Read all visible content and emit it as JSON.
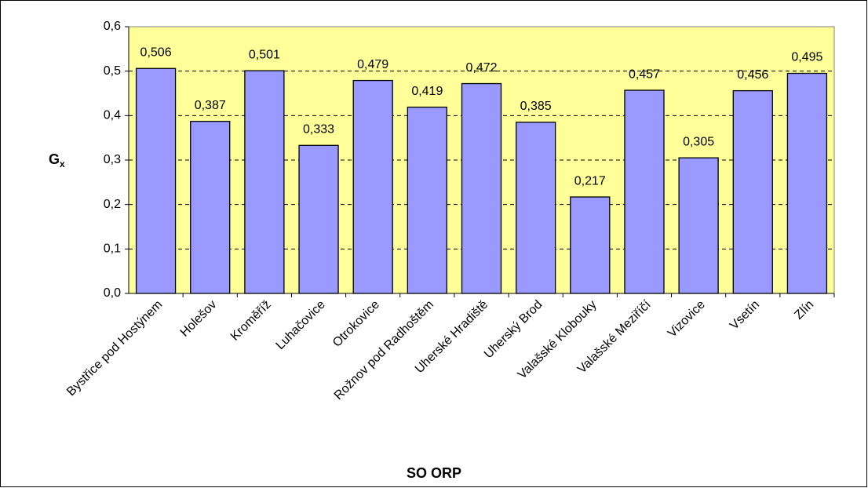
{
  "chart_data": {
    "type": "bar",
    "x_label": "SO ORP",
    "y_label": [
      "G",
      "x"
    ],
    "categories": [
      "Bystřice pod Hostýnem",
      "Holešov",
      "Kroměříž",
      "Luhačovice",
      "Otrokovice",
      "Rožnov pod Radhoštěm",
      "Uherské Hradiště",
      "Uherský Brod",
      "Valašské Klobouky",
      "Valašské Meziříčí",
      "Vizovice",
      "Vsetín",
      "Zlín"
    ],
    "values": [
      0.506,
      0.387,
      0.501,
      0.333,
      0.479,
      0.419,
      0.472,
      0.385,
      0.217,
      0.457,
      0.305,
      0.456,
      0.495
    ],
    "value_labels": [
      "0,506",
      "0,387",
      "0,501",
      "0,333",
      "0,479",
      "0,419",
      "0,472",
      "0,385",
      "0,217",
      "0,457",
      "0,305",
      "0,456",
      "0,495"
    ],
    "color": "#9999ff",
    "ylim": [
      0,
      0.6
    ],
    "yticks": [
      {
        "value": 0,
        "label": "0,0"
      },
      {
        "value": 0.1,
        "label": "0,1"
      },
      {
        "value": 0.2,
        "label": "0,2"
      },
      {
        "value": 0.3,
        "label": "0,3"
      },
      {
        "value": 0.4,
        "label": "0,4"
      },
      {
        "value": 0.5,
        "label": "0,5"
      },
      {
        "value": 0.6,
        "label": "0,6"
      }
    ],
    "grid": true
  }
}
